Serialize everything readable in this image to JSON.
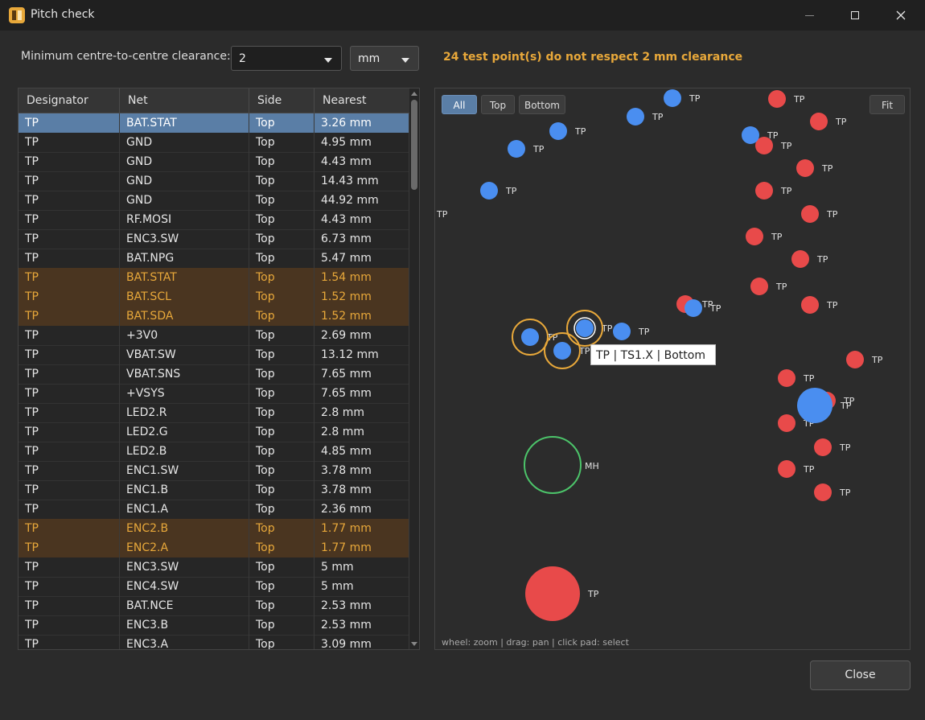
{
  "window": {
    "title": "Pitch check",
    "icons": {
      "app": "app-logo-icon",
      "minimize": "minimize-icon",
      "maximize": "maximize-icon",
      "close": "close-icon"
    }
  },
  "controls": {
    "clearance_label": "Minimum centre-to-centre clearance:",
    "clearance_value": "2",
    "unit_value": "mm",
    "warning": "24 test point(s) do not respect 2 mm clearance",
    "warning_color": "#e8a83a"
  },
  "table": {
    "columns": [
      "Designator",
      "Net",
      "Side",
      "Nearest"
    ],
    "rows": [
      {
        "d": "TP",
        "net": "BAT.STAT",
        "side": "Top",
        "near": "3.26 mm",
        "state": "selected"
      },
      {
        "d": "TP",
        "net": "GND",
        "side": "Top",
        "near": "4.95 mm",
        "state": "normal"
      },
      {
        "d": "TP",
        "net": "GND",
        "side": "Top",
        "near": "4.43 mm",
        "state": "normal"
      },
      {
        "d": "TP",
        "net": "GND",
        "side": "Top",
        "near": "14.43 mm",
        "state": "normal"
      },
      {
        "d": "TP",
        "net": "GND",
        "side": "Top",
        "near": "44.92 mm",
        "state": "normal"
      },
      {
        "d": "TP",
        "net": "RF.MOSI",
        "side": "Top",
        "near": "4.43 mm",
        "state": "normal"
      },
      {
        "d": "TP",
        "net": "ENC3.SW",
        "side": "Top",
        "near": "6.73 mm",
        "state": "normal"
      },
      {
        "d": "TP",
        "net": "BAT.NPG",
        "side": "Top",
        "near": "5.47 mm",
        "state": "normal"
      },
      {
        "d": "TP",
        "net": "BAT.STAT",
        "side": "Top",
        "near": "1.54 mm",
        "state": "flagged"
      },
      {
        "d": "TP",
        "net": "BAT.SCL",
        "side": "Top",
        "near": "1.52 mm",
        "state": "flagged"
      },
      {
        "d": "TP",
        "net": "BAT.SDA",
        "side": "Top",
        "near": "1.52 mm",
        "state": "flagged"
      },
      {
        "d": "TP",
        "net": "+3V0",
        "side": "Top",
        "near": "2.69 mm",
        "state": "normal"
      },
      {
        "d": "TP",
        "net": "VBAT.SW",
        "side": "Top",
        "near": "13.12 mm",
        "state": "normal"
      },
      {
        "d": "TP",
        "net": "VBAT.SNS",
        "side": "Top",
        "near": "7.65 mm",
        "state": "normal"
      },
      {
        "d": "TP",
        "net": "+VSYS",
        "side": "Top",
        "near": "7.65 mm",
        "state": "normal"
      },
      {
        "d": "TP",
        "net": "LED2.R",
        "side": "Top",
        "near": "2.8 mm",
        "state": "normal"
      },
      {
        "d": "TP",
        "net": "LED2.G",
        "side": "Top",
        "near": "2.8 mm",
        "state": "normal"
      },
      {
        "d": "TP",
        "net": "LED2.B",
        "side": "Top",
        "near": "4.85 mm",
        "state": "normal"
      },
      {
        "d": "TP",
        "net": "ENC1.SW",
        "side": "Top",
        "near": "3.78 mm",
        "state": "normal"
      },
      {
        "d": "TP",
        "net": "ENC1.B",
        "side": "Top",
        "near": "3.78 mm",
        "state": "normal"
      },
      {
        "d": "TP",
        "net": "ENC1.A",
        "side": "Top",
        "near": "2.36 mm",
        "state": "normal"
      },
      {
        "d": "TP",
        "net": "ENC2.B",
        "side": "Top",
        "near": "1.77 mm",
        "state": "flagged"
      },
      {
        "d": "TP",
        "net": "ENC2.A",
        "side": "Top",
        "near": "1.77 mm",
        "state": "flagged"
      },
      {
        "d": "TP",
        "net": "ENC3.SW",
        "side": "Top",
        "near": "5 mm",
        "state": "normal"
      },
      {
        "d": "TP",
        "net": "ENC4.SW",
        "side": "Top",
        "near": "5 mm",
        "state": "normal"
      },
      {
        "d": "TP",
        "net": "BAT.NCE",
        "side": "Top",
        "near": "2.53 mm",
        "state": "normal"
      },
      {
        "d": "TP",
        "net": "ENC3.B",
        "side": "Top",
        "near": "2.53 mm",
        "state": "normal"
      },
      {
        "d": "TP",
        "net": "ENC3.A",
        "side": "Top",
        "near": "3.09 mm",
        "state": "normal"
      }
    ]
  },
  "canvas": {
    "filters": [
      "All",
      "Top",
      "Bottom"
    ],
    "active_filter": "All",
    "fit_label": "Fit",
    "hint": "wheel: zoom  |  drag: pan  |  click pad: select",
    "tooltip": "TP  |  TS1.X  |  Bottom",
    "colors": {
      "top": "#e84a4a",
      "bottom": "#4a8ef0",
      "violation": "#e8a83a",
      "mounting_hole": "#4cc46a"
    },
    "pad_label": "TP",
    "hole_label": "MH"
  },
  "footer": {
    "close_label": "Close"
  }
}
